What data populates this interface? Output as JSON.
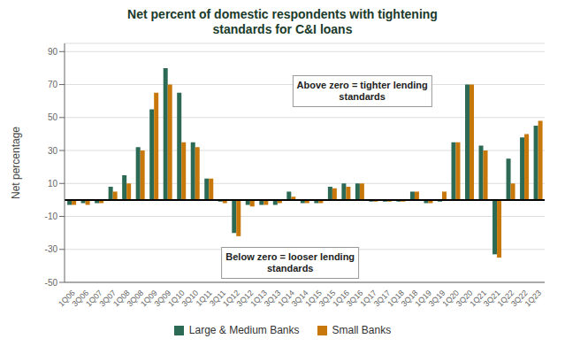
{
  "chart_data": {
    "type": "bar",
    "title": "Net percent of domestic respondents with tightening\nstandards for C&I loans",
    "y_label": "Net percentage",
    "categories": [
      "1Q06",
      "3Q06",
      "1Q07",
      "3Q07",
      "1Q08",
      "3Q08",
      "1Q09",
      "3Q09",
      "1Q10",
      "3Q10",
      "1Q11",
      "3Q11",
      "1Q12",
      "3Q12",
      "1Q13",
      "3Q13",
      "1Q14",
      "3Q14",
      "1Q15",
      "3Q15",
      "1Q16",
      "3Q16",
      "1Q17",
      "3Q17",
      "1Q18",
      "3Q18",
      "1Q19",
      "3Q19",
      "1Q20",
      "3Q20",
      "1Q21",
      "3Q21",
      "1Q22",
      "3Q22",
      "1Q23"
    ],
    "series": [
      {
        "name": "Large & Medium Banks",
        "color": "#2d6a55",
        "values": [
          -3,
          -2,
          -2,
          8,
          15,
          32,
          55,
          80,
          65,
          35,
          13,
          -1,
          -20,
          -3,
          -3,
          -3,
          5,
          -2,
          -2,
          8,
          10,
          10,
          -1,
          -1,
          -1,
          5,
          -2,
          -1,
          35,
          70,
          33,
          -33,
          25,
          38,
          45
        ]
      },
      {
        "name": "Small Banks",
        "color": "#c8780a",
        "values": [
          -3,
          -3,
          -2,
          5,
          10,
          30,
          65,
          70,
          35,
          32,
          13,
          -2,
          -22,
          -4,
          -3,
          -2,
          2,
          -2,
          -2,
          7,
          8,
          10,
          -1,
          -1,
          -1,
          5,
          -2,
          5,
          35,
          70,
          30,
          -35,
          10,
          40,
          48
        ]
      }
    ],
    "ylim": [
      -50,
      95
    ],
    "yticks": [
      -50,
      -30,
      -10,
      10,
      30,
      50,
      70,
      90
    ],
    "annotations": [
      "Above zero = tighter lending\nstandards",
      "Below zero = looser lending\nstandards"
    ],
    "grid": true,
    "legend": "bottom"
  }
}
